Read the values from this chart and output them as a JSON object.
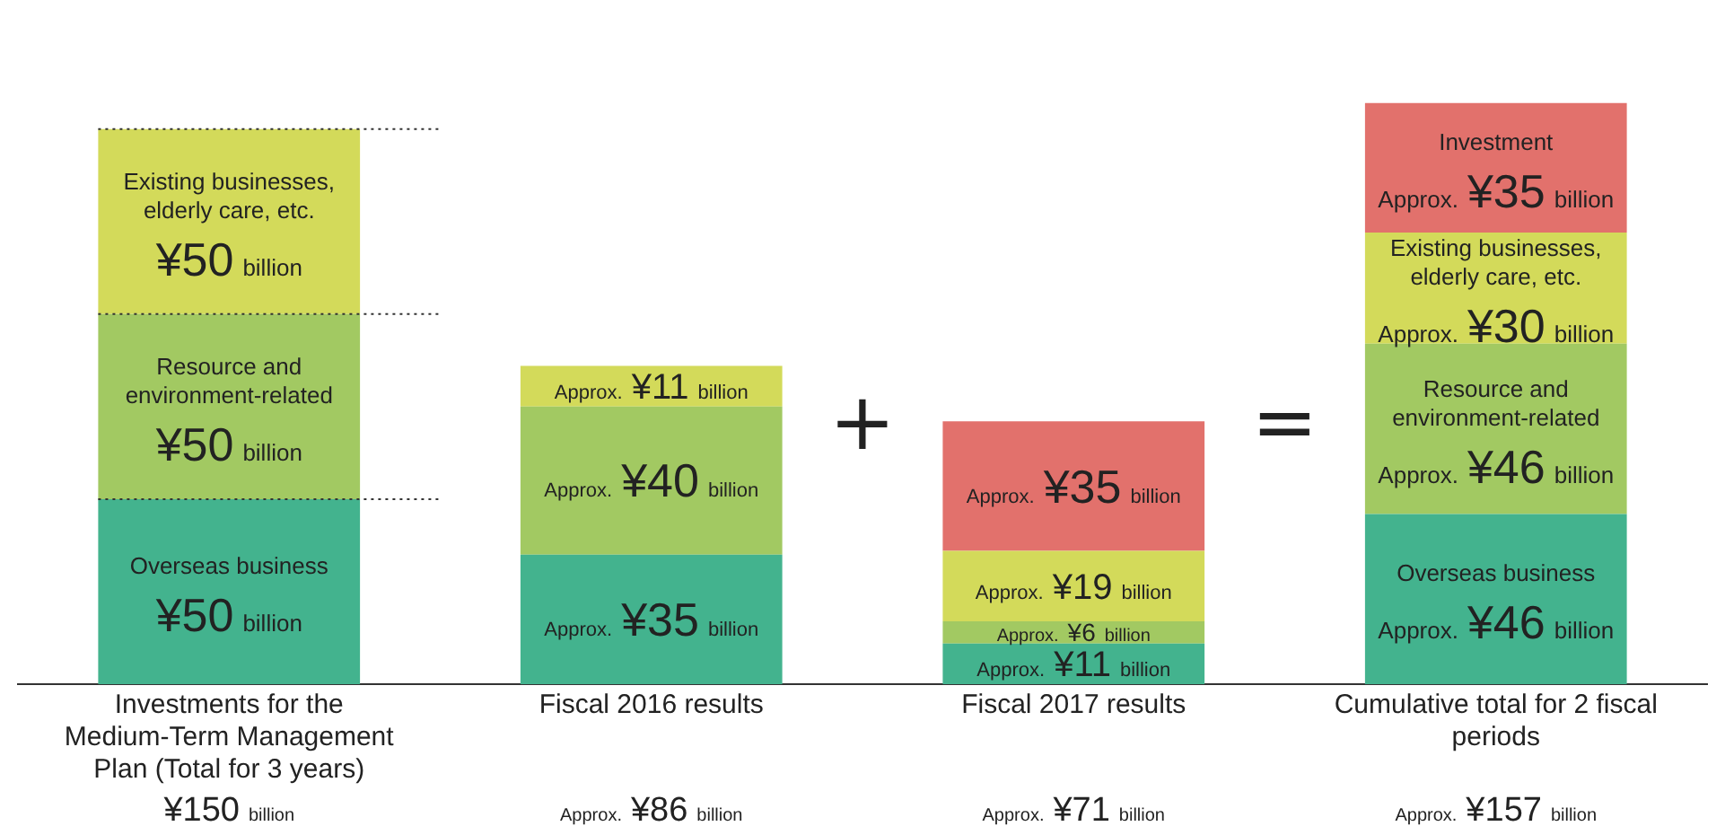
{
  "chart_data": {
    "type": "bar",
    "stacked": true,
    "categories": [
      "Investments for the Medium-Term Management Plan (Total for 3 years)",
      "Fiscal 2016 results",
      "Fiscal 2017 results",
      "Cumulative total for 2 fiscal periods"
    ],
    "series": [
      {
        "name": "Overseas business",
        "color": "#43b38e",
        "values": [
          50,
          35,
          11,
          46
        ],
        "value_labels": [
          "¥50 billion",
          "Approx. ¥35 billion",
          "Approx. ¥11 billion",
          "Approx. ¥46 billion"
        ]
      },
      {
        "name": "Resource and environment-related",
        "color": "#a2c962",
        "values": [
          50,
          40,
          6,
          46
        ],
        "value_labels": [
          "¥50 billion",
          "Approx. ¥40 billion",
          "Approx. ¥6 billion",
          "Approx. ¥46 billion"
        ]
      },
      {
        "name": "Existing businesses, elderly care, etc.",
        "color": "#d3da5a",
        "values": [
          50,
          11,
          19,
          30
        ],
        "value_labels": [
          "¥50 billion",
          "Approx. ¥11 billion",
          "Approx. ¥19 billion",
          "Approx. ¥30 billion"
        ]
      },
      {
        "name": "Investment",
        "color": "#e2716c",
        "values": [
          null,
          null,
          35,
          35
        ],
        "value_labels": [
          null,
          null,
          "Approx. ¥35 billion",
          "Approx. ¥35 billion"
        ]
      }
    ],
    "ref_lines": [
      {
        "axis": "y",
        "value": 50,
        "line_style": "dotted"
      },
      {
        "axis": "y",
        "value": 100,
        "line_style": "dotted"
      },
      {
        "axis": "y",
        "value": 150,
        "line_style": "dotted"
      }
    ],
    "annotations": [
      "+",
      "=",
      "¥150 billion",
      "Approx. ¥86 billion",
      "Approx. ¥71 billion",
      "Approx. ¥157 billion"
    ],
    "tick_labels": "x",
    "grid": false,
    "legend": false
  }
}
